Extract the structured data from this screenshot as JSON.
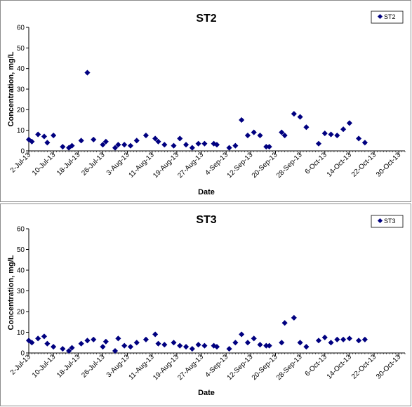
{
  "colors": {
    "marker": "#000080",
    "axis": "#000000",
    "frame": "#8c8c8c"
  },
  "chart_data": [
    {
      "type": "scatter",
      "title": "ST2",
      "xlabel": "Date",
      "ylabel": "Concentration, mg/L",
      "ylim": [
        0,
        60
      ],
      "yticks": [
        0,
        10,
        20,
        30,
        40,
        50,
        60
      ],
      "xlim": [
        "2013-07-02",
        "2013-11-01"
      ],
      "xtick_labels": [
        "2-Jul-13",
        "10-Jul-13",
        "18-Jul-13",
        "26-Jul-13",
        "3-Aug-13",
        "11-Aug-13",
        "19-Aug-13",
        "27-Aug-13",
        "4-Sep-13",
        "12-Sep-13",
        "20-Sep-13",
        "28-Sep-13",
        "6-Oct-13",
        "14-Oct-13",
        "22-Oct-13",
        "30-Oct-13"
      ],
      "xtick_dates": [
        "2013-07-02",
        "2013-07-10",
        "2013-07-18",
        "2013-07-26",
        "2013-08-03",
        "2013-08-11",
        "2013-08-19",
        "2013-08-27",
        "2013-09-04",
        "2013-09-12",
        "2013-09-20",
        "2013-09-28",
        "2013-10-06",
        "2013-10-14",
        "2013-10-22",
        "2013-10-30"
      ],
      "legend": "top-right",
      "series": [
        {
          "name": "ST2",
          "points": [
            [
              "2013-07-02",
              5.5
            ],
            [
              "2013-07-03",
              4.5
            ],
            [
              "2013-07-05",
              8
            ],
            [
              "2013-07-07",
              7
            ],
            [
              "2013-07-08",
              4
            ],
            [
              "2013-07-10",
              7.5
            ],
            [
              "2013-07-13",
              2
            ],
            [
              "2013-07-15",
              1.5
            ],
            [
              "2013-07-16",
              2.5
            ],
            [
              "2013-07-19",
              5
            ],
            [
              "2013-07-21",
              38
            ],
            [
              "2013-07-23",
              5.5
            ],
            [
              "2013-07-26",
              3
            ],
            [
              "2013-07-27",
              4.5
            ],
            [
              "2013-07-30",
              1.5
            ],
            [
              "2013-07-31",
              3
            ],
            [
              "2013-08-02",
              3
            ],
            [
              "2013-08-04",
              2.5
            ],
            [
              "2013-08-06",
              5
            ],
            [
              "2013-08-09",
              7.5
            ],
            [
              "2013-08-12",
              6
            ],
            [
              "2013-08-13",
              4.5
            ],
            [
              "2013-08-15",
              3
            ],
            [
              "2013-08-18",
              2.5
            ],
            [
              "2013-08-20",
              6
            ],
            [
              "2013-08-22",
              3
            ],
            [
              "2013-08-24",
              1.5
            ],
            [
              "2013-08-26",
              3.5
            ],
            [
              "2013-08-28",
              3.5
            ],
            [
              "2013-08-31",
              3.5
            ],
            [
              "2013-09-01",
              3
            ],
            [
              "2013-09-05",
              1.5
            ],
            [
              "2013-09-07",
              2.5
            ],
            [
              "2013-09-09",
              15
            ],
            [
              "2013-09-11",
              7.5
            ],
            [
              "2013-09-13",
              9
            ],
            [
              "2013-09-15",
              7.5
            ],
            [
              "2013-09-17",
              2
            ],
            [
              "2013-09-18",
              2
            ],
            [
              "2013-09-22",
              9
            ],
            [
              "2013-09-23",
              7.5
            ],
            [
              "2013-09-26",
              18
            ],
            [
              "2013-09-28",
              16.5
            ],
            [
              "2013-09-30",
              11.5
            ],
            [
              "2013-10-04",
              3.5
            ],
            [
              "2013-10-06",
              8.5
            ],
            [
              "2013-10-08",
              8
            ],
            [
              "2013-10-10",
              7.5
            ],
            [
              "2013-10-12",
              10.5
            ],
            [
              "2013-10-14",
              13.5
            ],
            [
              "2013-10-17",
              6
            ],
            [
              "2013-10-19",
              4
            ]
          ]
        }
      ]
    },
    {
      "type": "scatter",
      "title": "ST3",
      "xlabel": "Date",
      "ylabel": "Concentration, mg/L",
      "ylim": [
        0,
        60
      ],
      "yticks": [
        0,
        10,
        20,
        30,
        40,
        50,
        60
      ],
      "xlim": [
        "2013-07-02",
        "2013-11-01"
      ],
      "xtick_labels": [
        "2-Jul-13",
        "10-Jul-13",
        "18-Jul-13",
        "26-Jul-13",
        "3-Aug-13",
        "11-Aug-13",
        "19-Aug-13",
        "27-Aug-13",
        "4-Sep-13",
        "12-Sep-13",
        "20-Sep-13",
        "28-Sep-13",
        "6-Oct-13",
        "14-Oct-13",
        "22-Oct-13",
        "30-Oct-13"
      ],
      "xtick_dates": [
        "2013-07-02",
        "2013-07-10",
        "2013-07-18",
        "2013-07-26",
        "2013-08-03",
        "2013-08-11",
        "2013-08-19",
        "2013-08-27",
        "2013-09-04",
        "2013-09-12",
        "2013-09-20",
        "2013-09-28",
        "2013-10-06",
        "2013-10-14",
        "2013-10-22",
        "2013-10-30"
      ],
      "legend": "top-right",
      "series": [
        {
          "name": "ST3",
          "points": [
            [
              "2013-07-02",
              6
            ],
            [
              "2013-07-03",
              5
            ],
            [
              "2013-07-05",
              7
            ],
            [
              "2013-07-07",
              8
            ],
            [
              "2013-07-08",
              4.5
            ],
            [
              "2013-07-10",
              3
            ],
            [
              "2013-07-13",
              2
            ],
            [
              "2013-07-15",
              1
            ],
            [
              "2013-07-16",
              2.5
            ],
            [
              "2013-07-19",
              4.5
            ],
            [
              "2013-07-21",
              6
            ],
            [
              "2013-07-23",
              6.5
            ],
            [
              "2013-07-26",
              3
            ],
            [
              "2013-07-27",
              5.5
            ],
            [
              "2013-07-30",
              1
            ],
            [
              "2013-07-31",
              7
            ],
            [
              "2013-08-02",
              3.5
            ],
            [
              "2013-08-04",
              3
            ],
            [
              "2013-08-06",
              5
            ],
            [
              "2013-08-09",
              6.5
            ],
            [
              "2013-08-12",
              9
            ],
            [
              "2013-08-13",
              4.5
            ],
            [
              "2013-08-15",
              4
            ],
            [
              "2013-08-18",
              5
            ],
            [
              "2013-08-20",
              3.5
            ],
            [
              "2013-08-22",
              3
            ],
            [
              "2013-08-24",
              2
            ],
            [
              "2013-08-26",
              4
            ],
            [
              "2013-08-28",
              3.5
            ],
            [
              "2013-08-31",
              3.5
            ],
            [
              "2013-09-01",
              3
            ],
            [
              "2013-09-05",
              2
            ],
            [
              "2013-09-07",
              5
            ],
            [
              "2013-09-09",
              9
            ],
            [
              "2013-09-11",
              5
            ],
            [
              "2013-09-13",
              7
            ],
            [
              "2013-09-15",
              4
            ],
            [
              "2013-09-17",
              3.5
            ],
            [
              "2013-09-18",
              3.5
            ],
            [
              "2013-09-22",
              5
            ],
            [
              "2013-09-23",
              14.5
            ],
            [
              "2013-09-26",
              17
            ],
            [
              "2013-09-28",
              5
            ],
            [
              "2013-09-30",
              3
            ],
            [
              "2013-10-04",
              6
            ],
            [
              "2013-10-06",
              7.5
            ],
            [
              "2013-10-08",
              5
            ],
            [
              "2013-10-10",
              6.5
            ],
            [
              "2013-10-12",
              6.5
            ],
            [
              "2013-10-14",
              7
            ],
            [
              "2013-10-17",
              6
            ],
            [
              "2013-10-19",
              6.5
            ]
          ]
        }
      ]
    }
  ]
}
